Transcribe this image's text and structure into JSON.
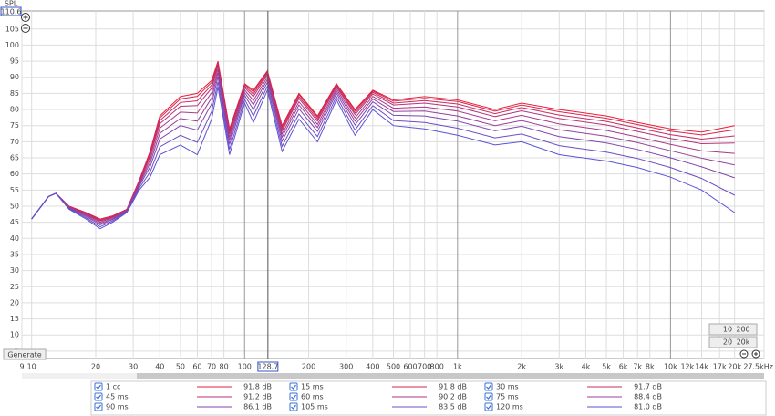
{
  "chart_data": {
    "type": "line",
    "x_scale": "log",
    "y_label": "SPL",
    "cursor": 128.7,
    "buttons": [
      "Generate"
    ],
    "range_buttons": [
      [
        "10",
        "200"
      ],
      [
        "20",
        "20k"
      ]
    ],
    "xlim": [
      9,
      27500
    ],
    "ylim": [
      2.7,
      110.6
    ],
    "xticks": [
      9,
      10,
      20,
      30,
      40,
      50,
      60,
      70,
      80,
      100,
      200,
      300,
      400,
      500,
      600,
      700,
      800,
      {
        "value": 1000,
        "label": "1k"
      },
      {
        "value": 2000,
        "label": "2k"
      },
      {
        "value": 3000,
        "label": "3k"
      },
      {
        "value": 4000,
        "label": "4k"
      },
      {
        "value": 5000,
        "label": "5k"
      },
      {
        "value": 6000,
        "label": "6k"
      },
      {
        "value": 7000,
        "label": "7k"
      },
      {
        "value": 8000,
        "label": "8k"
      },
      {
        "value": 10000,
        "label": "10k"
      },
      {
        "value": 12000,
        "label": "12k"
      },
      {
        "value": 14000,
        "label": "14k"
      },
      {
        "value": 17000,
        "label": "17k"
      },
      {
        "value": 20000,
        "label": "20k"
      },
      {
        "value": 27500,
        "label": "27.5kHz"
      }
    ],
    "yticks": [
      5,
      10,
      15,
      20,
      25,
      30,
      35,
      40,
      45,
      50,
      55,
      60,
      65,
      70,
      75,
      80,
      85,
      90,
      95,
      100,
      105
    ],
    "grid": true,
    "x": [
      10,
      12,
      13,
      15,
      18,
      21,
      24,
      28,
      32,
      36,
      40,
      50,
      60,
      70,
      75,
      85,
      100,
      110,
      128,
      150,
      180,
      220,
      270,
      330,
      400,
      500,
      700,
      1000,
      1500,
      2000,
      3000,
      5000,
      7000,
      10000,
      14000,
      20000
    ],
    "series": [
      {
        "name": "1 cc",
        "color": "#e8203a",
        "level": 91.8,
        "level_label": "91.8 dB",
        "values": [
          46,
          53,
          54,
          50,
          48,
          46,
          47,
          49,
          58,
          67,
          78,
          84,
          85,
          89,
          95,
          74,
          88,
          86,
          92,
          75,
          85,
          78,
          88,
          80,
          86,
          83,
          84,
          83,
          80,
          82,
          80,
          78,
          76,
          74,
          73,
          75
        ]
      },
      {
        "name": "15 ms",
        "color": "#d8264e",
        "level": 91.8,
        "level_label": "91.8 dB",
        "values": [
          46,
          53,
          54,
          49.9,
          47.9,
          45.9,
          46.9,
          49,
          57.9,
          66.6,
          77.4,
          83.3,
          84.1,
          88.4,
          94.6,
          73.6,
          87.7,
          85.5,
          91.7,
          74.6,
          84.6,
          77.6,
          87.8,
          79.6,
          85.7,
          82.6,
          83.5,
          82.5,
          79.5,
          81.4,
          79.3,
          77.3,
          75.3,
          73.3,
          72.1,
          73.7
        ]
      },
      {
        "name": "30 ms",
        "color": "#c82c62",
        "level": 91.7,
        "level_label": "91.7 dB",
        "values": [
          46,
          53,
          54,
          49.9,
          47.8,
          45.6,
          46.8,
          48.9,
          57.6,
          66,
          76.6,
          82.2,
          82.7,
          87.6,
          94,
          73,
          87.3,
          84.8,
          91.3,
          74,
          84,
          77,
          87.4,
          79,
          85.3,
          82,
          82.8,
          81.7,
          78.7,
          80.6,
          78.3,
          76.3,
          74.3,
          72.2,
          70.8,
          71.8
        ]
      },
      {
        "name": "45 ms",
        "color": "#b83276",
        "level": 91.2,
        "level_label": "91.2 dB",
        "values": [
          46,
          53,
          54,
          49.8,
          47.6,
          45.4,
          46.6,
          48.8,
          57.4,
          65.4,
          75.6,
          81,
          81.2,
          86.6,
          93.4,
          72.4,
          86.8,
          84,
          90.8,
          73.4,
          83.4,
          76.4,
          87,
          78.4,
          84.8,
          81.4,
          82,
          80.8,
          77.8,
          79.6,
          77.2,
          75.2,
          73.2,
          71,
          69.4,
          69.6
        ]
      },
      {
        "name": "60 ms",
        "color": "#a8388a",
        "level": 90.2,
        "level_label": "90.2 dB",
        "values": [
          46,
          53,
          54,
          49.7,
          47.4,
          45,
          46.4,
          48.7,
          57,
          64.4,
          74.2,
          79.2,
          78.9,
          85.2,
          92.4,
          71.4,
          86.1,
          82.8,
          90.1,
          72.4,
          82.4,
          75.4,
          86.4,
          77.4,
          84.1,
          80.4,
          80.8,
          79.5,
          76.5,
          78.2,
          75.5,
          73.5,
          71.5,
          69.2,
          67.2,
          66.4
        ]
      },
      {
        "name": "75 ms",
        "color": "#96409c",
        "level": 88.4,
        "level_label": "88.4 dB",
        "values": [
          46,
          53,
          54,
          49.5,
          47.1,
          44.6,
          46.1,
          48.5,
          56.6,
          63.4,
          72.6,
          77.2,
          76.4,
          83.6,
          91.4,
          70.4,
          85.3,
          81.5,
          89.3,
          71.4,
          81.4,
          74.4,
          85.7,
          76.4,
          83.3,
          79.4,
          79.5,
          78,
          75,
          76.6,
          73.7,
          71.7,
          69.7,
          67.2,
          64.9,
          62.8
        ]
      },
      {
        "name": "90 ms",
        "color": "#8246b0",
        "level": 86.1,
        "level_label": "86.1 dB",
        "values": [
          46,
          53,
          54,
          49.4,
          46.8,
          44.2,
          45.8,
          48.4,
          56.2,
          62.2,
          70.8,
          75,
          73.6,
          81.8,
          90.2,
          69.2,
          84.4,
          80,
          88.4,
          70.2,
          80.2,
          73.2,
          85,
          75.2,
          82.4,
          78.2,
          78,
          76.4,
          73.4,
          74.8,
          71.6,
          69.6,
          67.6,
          65,
          62.2,
          58.8
        ]
      },
      {
        "name": "105 ms",
        "color": "#6e4cc4",
        "level": 83.5,
        "level_label": "83.5 dB",
        "values": [
          46,
          53,
          54,
          49.2,
          46.4,
          43.6,
          45.4,
          48.2,
          55.6,
          60.6,
          68.4,
          72,
          69.8,
          79.4,
          88.6,
          67.6,
          83.2,
          78,
          87.2,
          68.6,
          78.6,
          71.6,
          84,
          73.6,
          81.2,
          76.6,
          76,
          74.2,
          71.2,
          72.4,
          68.8,
          66.8,
          64.8,
          62,
          58.6,
          53.4
        ]
      },
      {
        "name": "120 ms",
        "color": "#5a52d8",
        "level": 81.0,
        "level_label": "81.0 dB",
        "values": [
          46,
          53,
          54,
          49,
          46,
          43,
          45,
          48,
          55,
          59,
          66,
          69,
          66,
          77,
          87,
          66,
          82,
          76,
          86,
          67,
          77,
          70,
          83,
          72,
          80,
          75,
          74,
          72,
          69,
          70,
          66,
          64,
          62,
          59,
          55,
          48
        ]
      }
    ]
  }
}
